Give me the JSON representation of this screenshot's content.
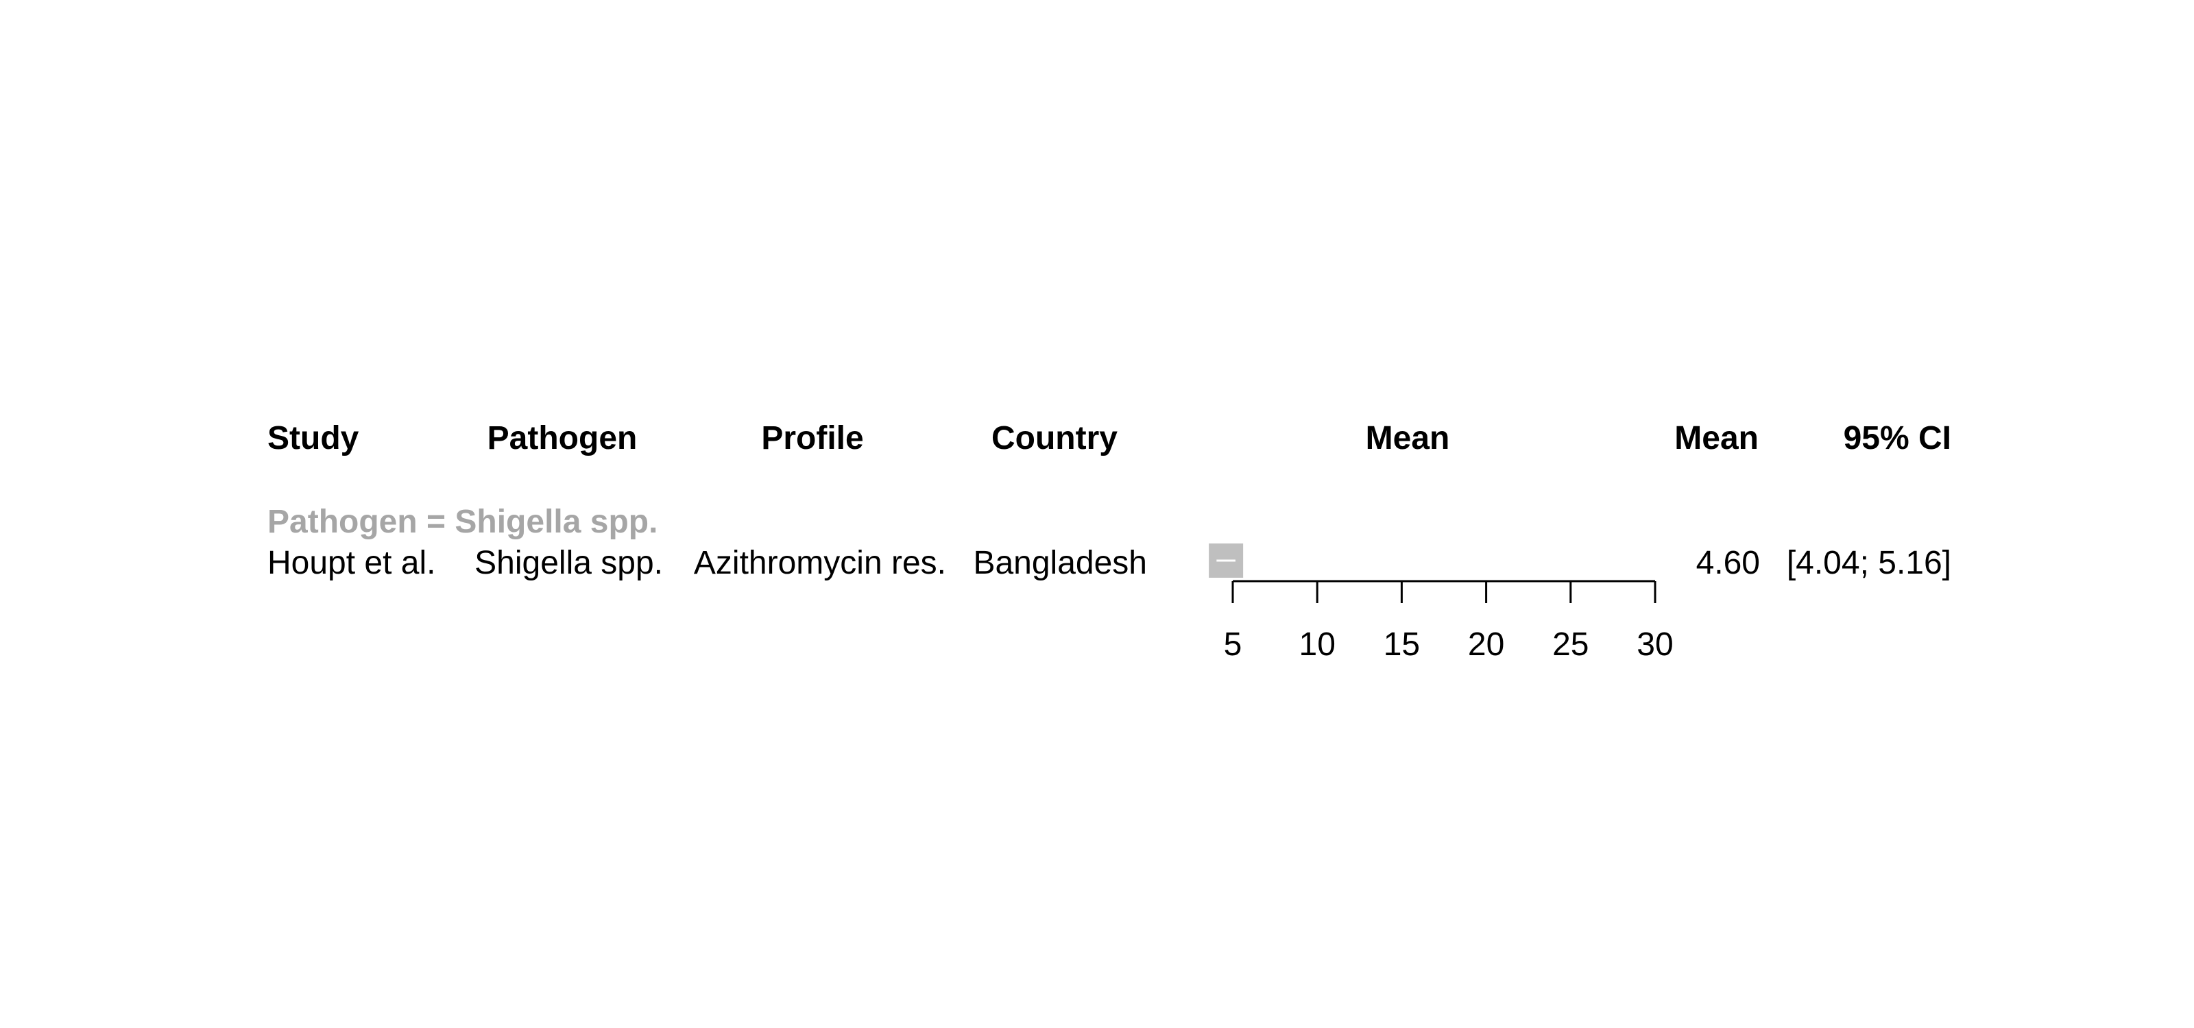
{
  "colors": {
    "text": "#000000",
    "subgroup_label": "#a6a6a6",
    "estimate_box": "#bfbfbf",
    "ci_line": "#ffffff",
    "axis": "#000000"
  },
  "headers": {
    "study": "Study",
    "pathogen": "Pathogen",
    "profile": "Profile",
    "country": "Country",
    "plot_title": "Mean",
    "mean": "Mean",
    "ci": "95% CI"
  },
  "subgroup": {
    "label": "Pathogen = Shigella spp."
  },
  "rows": [
    {
      "study": "Houpt et al.",
      "pathogen": "Shigella spp.",
      "profile": "Azithromycin res.",
      "country": "Bangladesh",
      "mean_text": "4.60",
      "ci_text": "[4.04; 5.16]"
    }
  ],
  "chart_data": {
    "type": "forest",
    "xlabel": "",
    "ylabel": "",
    "xlim": [
      5,
      30
    ],
    "xticks": [
      5,
      10,
      15,
      20,
      25,
      30
    ],
    "xtick_labels": [
      "5",
      "10",
      "15",
      "20",
      "25",
      "30"
    ],
    "series": [
      {
        "subgroup": "Pathogen = Shigella spp.",
        "study": "Houpt et al.",
        "mean": 4.6,
        "ci_lower": 4.04,
        "ci_upper": 5.16
      }
    ],
    "grid": false,
    "legend": "none"
  }
}
